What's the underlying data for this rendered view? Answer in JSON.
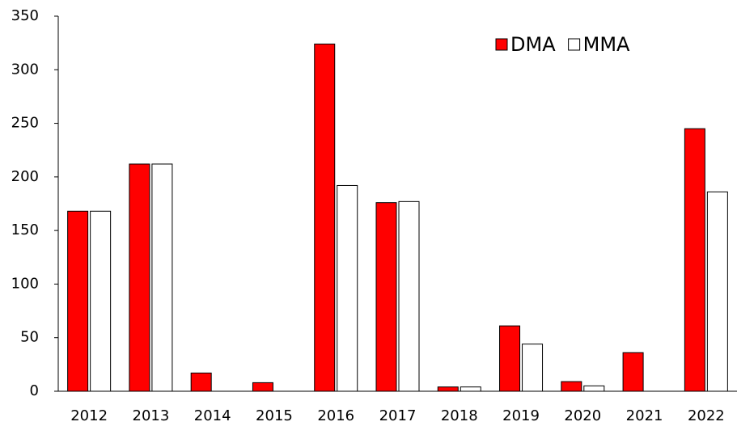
{
  "chart_data": {
    "type": "bar",
    "categories": [
      "2012",
      "2013",
      "2014",
      "2015",
      "2016",
      "2017",
      "2018",
      "2019",
      "2020",
      "2021",
      "2022"
    ],
    "series": [
      {
        "name": "DMA",
        "color": "#ff0000",
        "values": [
          168,
          212,
          17,
          8,
          324,
          176,
          4,
          61,
          9,
          36,
          245
        ]
      },
      {
        "name": "MMA",
        "color": "#ffffff",
        "values": [
          168,
          212,
          0,
          0,
          192,
          177,
          4,
          44,
          5,
          0,
          186
        ]
      }
    ],
    "ylim": [
      0,
      350
    ],
    "yticks": [
      0,
      50,
      100,
      150,
      200,
      250,
      300,
      350
    ],
    "grid": false,
    "legend": "upper right"
  }
}
